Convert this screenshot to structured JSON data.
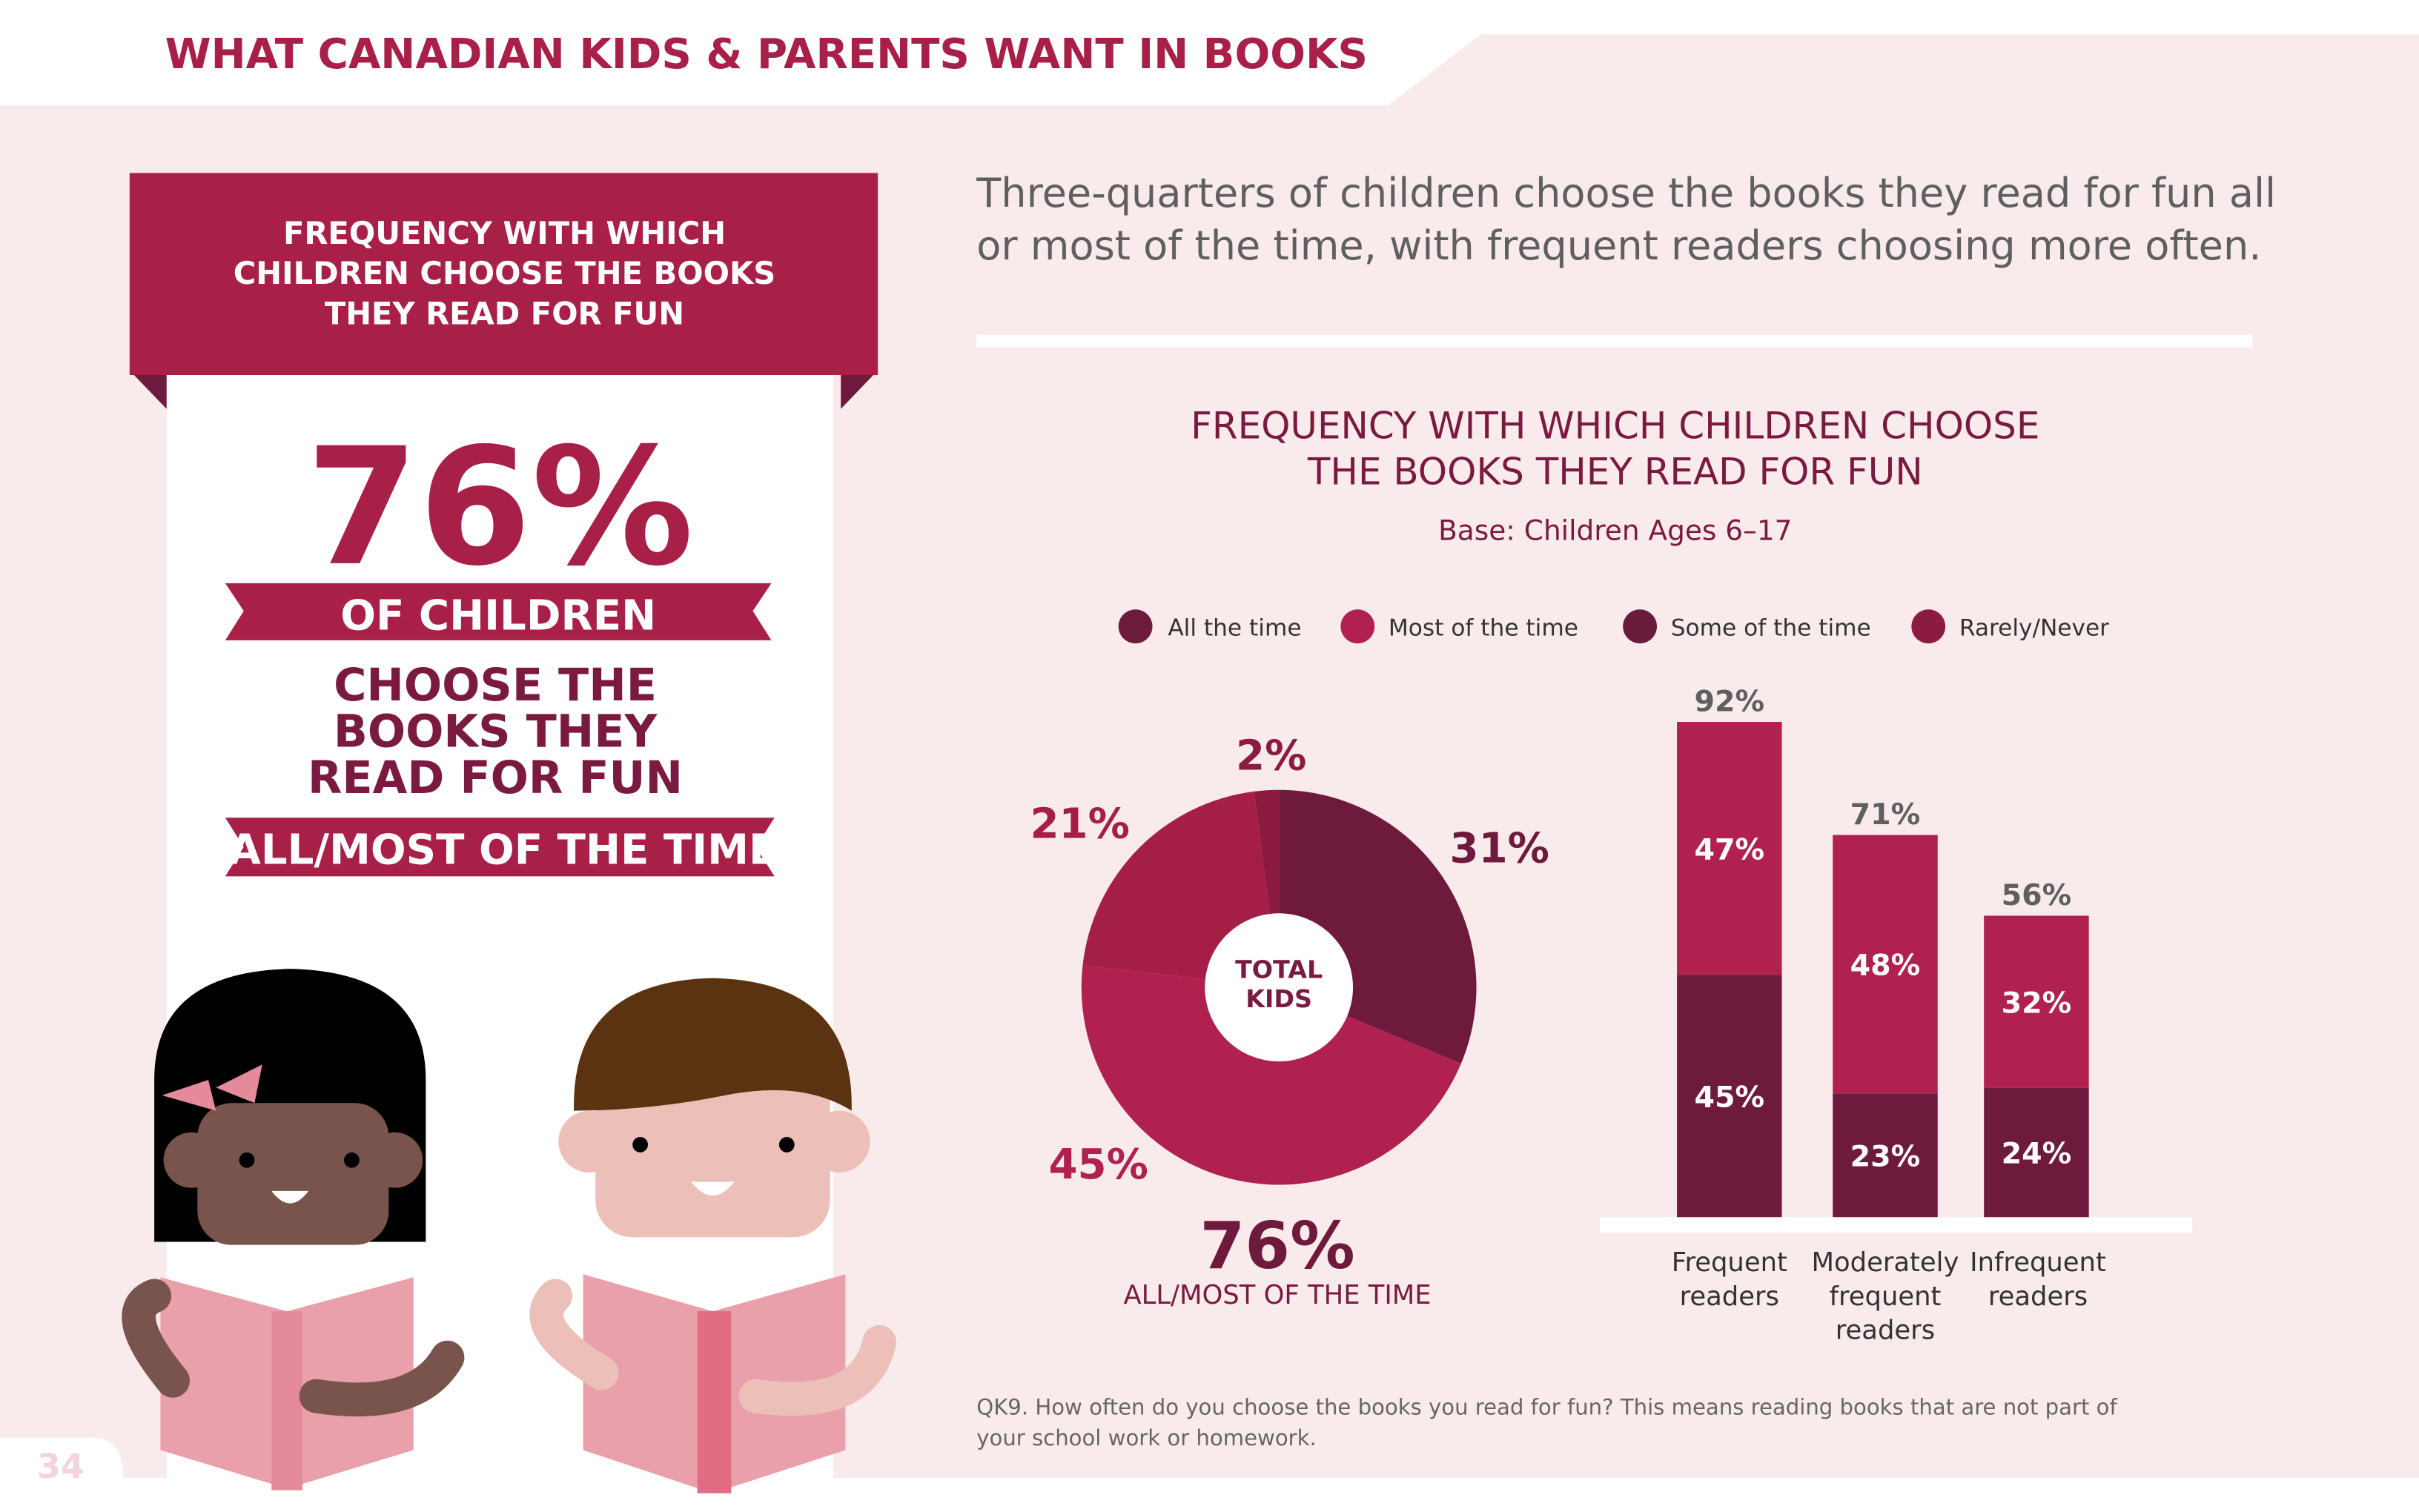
{
  "header": {
    "title": "WHAT CANADIAN KIDS & PARENTS WANT IN BOOKS"
  },
  "page_number": "34",
  "left_panel": {
    "banner": [
      "FREQUENCY WITH WHICH",
      "CHILDREN CHOOSE THE BOOKS",
      "THEY READ FOR FUN"
    ],
    "big_stat": "76%",
    "ribbon1": "OF CHILDREN",
    "middle": [
      "CHOOSE THE",
      "BOOKS THEY",
      "READ FOR FUN"
    ],
    "ribbon2": "ALL/MOST OF THE TIME"
  },
  "headline": [
    "Three-quarters of children choose the books they read for fun all",
    "or most of the time, with frequent readers choosing more often."
  ],
  "colors": {
    "all": "#6e1a3c",
    "most": "#b02150",
    "some": "#a41e46",
    "rarely": "#8c1b42",
    "text": "#7a1a40",
    "bg": "#f9ebec",
    "header": "#a81f48"
  },
  "chart_data": {
    "type": "donut+stacked-bar",
    "title": [
      "FREQUENCY WITH WHICH CHILDREN CHOOSE",
      "THE BOOKS THEY READ FOR FUN"
    ],
    "subtitle": "Base: Children Ages 6–17",
    "legend": [
      "All the time",
      "Most of the time",
      "Some of the time",
      "Rarely/Never"
    ],
    "legend_placement": "top",
    "donut": {
      "center_label": [
        "TOTAL",
        "KIDS"
      ],
      "values": [
        31,
        45,
        21,
        2
      ],
      "labels": [
        "31%",
        "45%",
        "21%",
        "2%"
      ],
      "summary": "76%",
      "summary_label": "ALL/MOST OF THE TIME"
    },
    "bars": {
      "categories": [
        [
          "Frequent",
          "readers"
        ],
        [
          "Moderately",
          "frequent",
          "readers"
        ],
        [
          "Infrequent",
          "readers"
        ]
      ],
      "series": [
        {
          "name": "All the time",
          "values": [
            45,
            23,
            24
          ]
        },
        {
          "name": "Most of the time",
          "values": [
            47,
            48,
            32
          ]
        }
      ],
      "totals": [
        "92%",
        "71%",
        "56%"
      ],
      "ylim": [
        0,
        100
      ]
    }
  },
  "footnote": [
    "QK9. How often do you choose the books you read for fun? This means reading books that are not part of",
    "your school work or homework."
  ]
}
